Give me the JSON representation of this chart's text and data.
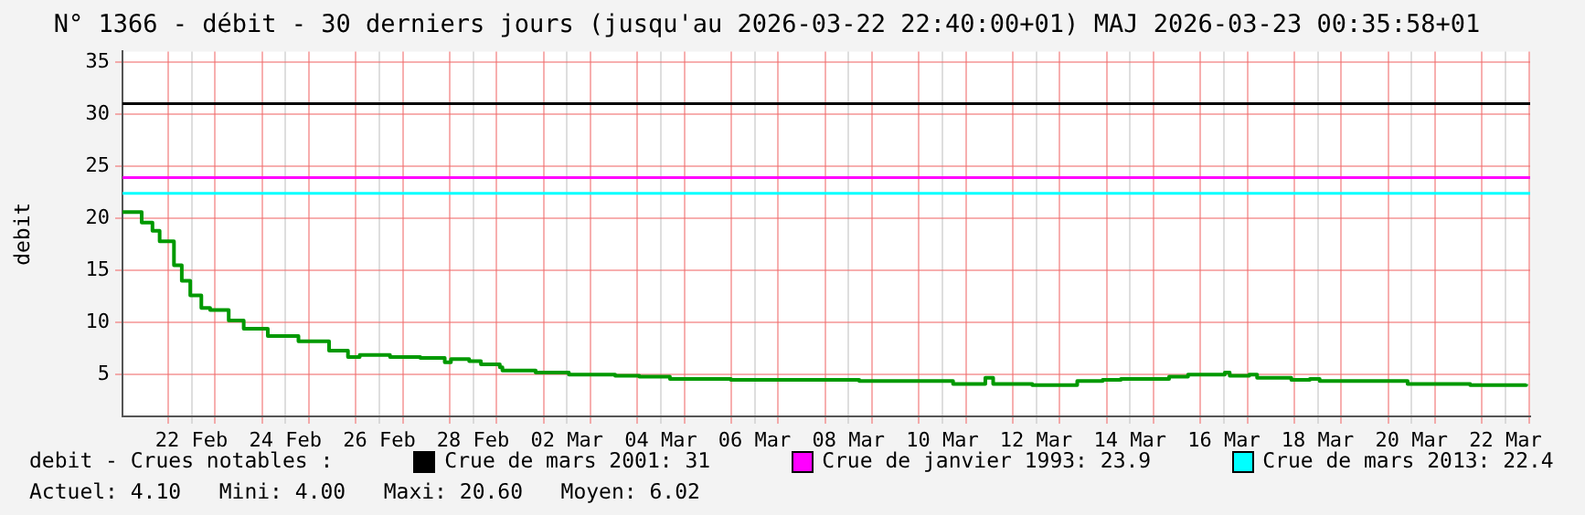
{
  "chart_data": {
    "type": "step",
    "title": "N° 1366 - débit - 30 derniers jours (jusqu'au 2026-03-22 22:40:00+01) MAJ 2026-03-23 00:35:58+01",
    "ylabel": "debit",
    "annotations": [
      "debit - Crues notables :",
      "Actuel: 4.10   Mini: 4.00   Maxi: 20.60   Moyen: 6.02"
    ],
    "series": [
      {
        "color": "#009900",
        "x": [
          "2026-02-21T00:40",
          "2026-02-21T10:00",
          "2026-02-21T10:30",
          "2026-02-21T16:00",
          "2026-02-21T19:40",
          "2026-02-22T03:00",
          "2026-02-22T07:00",
          "2026-02-22T11:20",
          "2026-02-22T17:00",
          "2026-02-22T21:30",
          "2026-02-23T07:00",
          "2026-02-23T14:40",
          "2026-02-24T03:00",
          "2026-02-24T18:40",
          "2026-02-25T10:20",
          "2026-02-25T20:00",
          "2026-02-26T02:00",
          "2026-02-26T17:30",
          "2026-02-27T09:00",
          "2026-02-27T21:30",
          "2026-02-28T00:40",
          "2026-02-28T10:00",
          "2026-02-28T16:00",
          "2026-03-01T01:40",
          "2026-03-01T03:00",
          "2026-03-01T17:00",
          "2026-03-01T20:00",
          "2026-03-02T11:50",
          "2026-03-02T13:00",
          "2026-03-03T12:40",
          "2026-03-04T01:00",
          "2026-03-04T16:40",
          "2026-03-05T23:50",
          "2026-03-07T04:00",
          "2026-03-08T17:30",
          "2026-03-10T16:10",
          "2026-03-10T17:30",
          "2026-03-11T09:15",
          "2026-03-11T10:00",
          "2026-03-11T14:00",
          "2026-03-12T08:40",
          "2026-03-12T10:00",
          "2026-03-13T06:30",
          "2026-03-13T09:00",
          "2026-03-13T22:00",
          "2026-03-14T07:20",
          "2026-03-15T05:15",
          "2026-03-15T08:00",
          "2026-03-15T17:40",
          "2026-03-16T12:30",
          "2026-03-16T15:00",
          "2026-03-17T01:00",
          "2026-03-17T05:00",
          "2026-03-17T19:30",
          "2026-03-17T22:30",
          "2026-03-18T08:00",
          "2026-03-18T13:00",
          "2026-03-20T08:20",
          "2026-03-20T10:00",
          "2026-03-21T17:00",
          "2026-03-21T18:00",
          "2026-03-22T22:40"
        ],
        "values": [
          20.6,
          20.6,
          19.6,
          18.8,
          17.8,
          15.5,
          14.0,
          12.6,
          11.4,
          11.2,
          10.2,
          9.4,
          8.7,
          8.2,
          7.3,
          6.7,
          6.9,
          6.7,
          6.6,
          6.2,
          6.5,
          6.3,
          6.0,
          5.7,
          5.4,
          5.4,
          5.2,
          5.2,
          5.0,
          4.9,
          4.8,
          4.6,
          4.5,
          4.5,
          4.4,
          4.4,
          4.1,
          4.1,
          4.7,
          4.1,
          4.1,
          4.0,
          4.0,
          4.4,
          4.5,
          4.6,
          4.6,
          4.8,
          5.0,
          5.2,
          4.9,
          5.0,
          4.7,
          4.7,
          4.5,
          4.6,
          4.4,
          4.4,
          4.1,
          4.1,
          4.0,
          4.1
        ]
      }
    ],
    "xlim": [
      "2026-02-21T00:40",
      "2026-03-23T00:40"
    ],
    "xticks": [
      {
        "value": "2026-02-22T00:00",
        "label": null
      },
      {
        "value": "2026-02-22T12:00",
        "label": "22 Feb"
      },
      {
        "value": "2026-02-23T00:00",
        "label": null
      },
      {
        "value": "2026-02-24T00:00",
        "label": null
      },
      {
        "value": "2026-02-24T12:00",
        "label": "24 Feb"
      },
      {
        "value": "2026-02-25T00:00",
        "label": null
      },
      {
        "value": "2026-02-26T00:00",
        "label": null
      },
      {
        "value": "2026-02-26T12:00",
        "label": "26 Feb"
      },
      {
        "value": "2026-02-27T00:00",
        "label": null
      },
      {
        "value": "2026-02-28T00:00",
        "label": null
      },
      {
        "value": "2026-02-28T12:00",
        "label": "28 Feb"
      },
      {
        "value": "2026-03-01T00:00",
        "label": null
      },
      {
        "value": "2026-03-02T00:00",
        "label": null
      },
      {
        "value": "2026-03-02T12:00",
        "label": "02 Mar"
      },
      {
        "value": "2026-03-03T00:00",
        "label": null
      },
      {
        "value": "2026-03-04T00:00",
        "label": null
      },
      {
        "value": "2026-03-04T12:00",
        "label": "04 Mar"
      },
      {
        "value": "2026-03-05T00:00",
        "label": null
      },
      {
        "value": "2026-03-06T00:00",
        "label": null
      },
      {
        "value": "2026-03-06T12:00",
        "label": "06 Mar"
      },
      {
        "value": "2026-03-07T00:00",
        "label": null
      },
      {
        "value": "2026-03-08T00:00",
        "label": null
      },
      {
        "value": "2026-03-08T12:00",
        "label": "08 Mar"
      },
      {
        "value": "2026-03-09T00:00",
        "label": null
      },
      {
        "value": "2026-03-10T00:00",
        "label": null
      },
      {
        "value": "2026-03-10T12:00",
        "label": "10 Mar"
      },
      {
        "value": "2026-03-11T00:00",
        "label": null
      },
      {
        "value": "2026-03-12T00:00",
        "label": null
      },
      {
        "value": "2026-03-12T12:00",
        "label": "12 Mar"
      },
      {
        "value": "2026-03-13T00:00",
        "label": null
      },
      {
        "value": "2026-03-14T00:00",
        "label": null
      },
      {
        "value": "2026-03-14T12:00",
        "label": "14 Mar"
      },
      {
        "value": "2026-03-15T00:00",
        "label": null
      },
      {
        "value": "2026-03-16T00:00",
        "label": null
      },
      {
        "value": "2026-03-16T12:00",
        "label": "16 Mar"
      },
      {
        "value": "2026-03-17T00:00",
        "label": null
      },
      {
        "value": "2026-03-18T00:00",
        "label": null
      },
      {
        "value": "2026-03-18T12:00",
        "label": "18 Mar"
      },
      {
        "value": "2026-03-19T00:00",
        "label": null
      },
      {
        "value": "2026-03-20T00:00",
        "label": null
      },
      {
        "value": "2026-03-20T12:00",
        "label": "20 Mar"
      },
      {
        "value": "2026-03-21T00:00",
        "label": null
      },
      {
        "value": "2026-03-22T00:00",
        "label": null
      },
      {
        "value": "2026-03-22T12:00",
        "label": "22 Mar"
      },
      {
        "value": "2026-03-23T00:00",
        "label": null
      }
    ],
    "ylim": [
      1,
      36
    ],
    "yticks": [
      5,
      10,
      15,
      20,
      25,
      30,
      35
    ],
    "grid": true,
    "legend": "bottom",
    "ref_lines": [
      {
        "axis": "y",
        "value": 31,
        "label": "Crue de mars 2001: 31",
        "color": "#000000"
      },
      {
        "axis": "y",
        "value": 23.9,
        "label": "Crue de janvier 1993: 23.9",
        "color": "#ff00ff"
      },
      {
        "axis": "y",
        "value": 22.4,
        "label": "Crue de mars 2013: 22.4",
        "color": "#00ffff"
      }
    ]
  }
}
